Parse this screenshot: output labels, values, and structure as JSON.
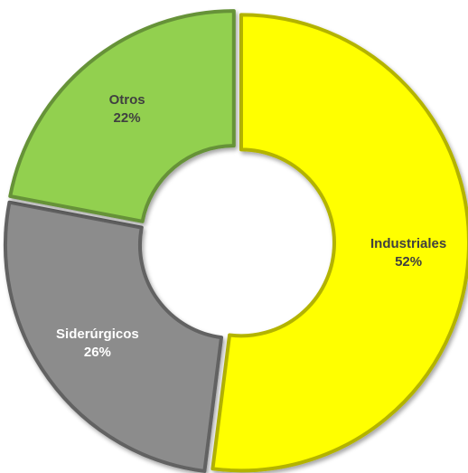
{
  "chart_data": {
    "type": "pie",
    "variant": "donut",
    "title": "",
    "slices": [
      {
        "label": "Industriales",
        "value": 52,
        "display": "52%",
        "color": "#ffff00",
        "label_color": "#404040"
      },
      {
        "label": "Siderúrgicos",
        "value": 26,
        "display": "26%",
        "color": "#8c8c8c",
        "label_color": "#ffffff"
      },
      {
        "label": "Otros",
        "value": 22,
        "display": "22%",
        "color": "#92d050",
        "label_color": "#404040"
      }
    ],
    "start_angle_deg": 0,
    "direction": "clockwise",
    "legend": "none",
    "exploded": true
  }
}
